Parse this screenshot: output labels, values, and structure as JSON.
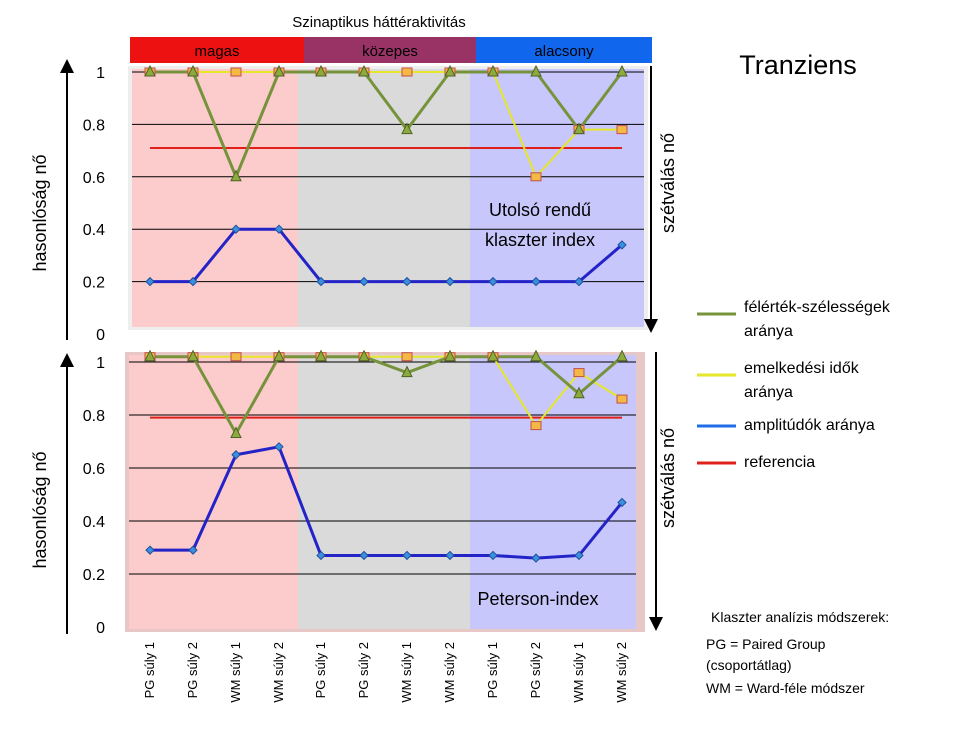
{
  "header": {
    "title": "Szinaptikus háttéraktivitás",
    "bands": [
      {
        "label": "magas",
        "color": "#ee1111"
      },
      {
        "label": "közepes",
        "color": "#993366"
      },
      {
        "label": "alacsony",
        "color": "#1166ee"
      }
    ]
  },
  "main_title": "Tranziens",
  "axis": {
    "ylabel": "hasonlóság nő",
    "right_label": "szétválás nő"
  },
  "legend": [
    {
      "label": "félérték-szélességek aránya",
      "color": "#76933c"
    },
    {
      "label": "emelkedési idők aránya",
      "color": "#e6e62a"
    },
    {
      "label": "amplitúdók aránya",
      "color": "#1f6ee8"
    },
    {
      "label": "referencia",
      "color": "#e0201b"
    }
  ],
  "notes": {
    "heading": "Klaszter analízis módszerek:",
    "line1": "PG = Paired Group",
    "line2": "(csoportátlag)",
    "line3": "WM = Ward-féle módszer"
  },
  "chart_data": [
    {
      "type": "line",
      "annotation": [
        "Utolsó rendű",
        "klaszter index"
      ],
      "categories": [
        "PG súly 1",
        "PG súly 2",
        "WM súly 1",
        "WM súly 2",
        "PG súly 1",
        "PG súly 2",
        "WM súly 1",
        "WM súly 2",
        "PG súly 1",
        "PG súly 2",
        "WM súly 1",
        "WM súly 2"
      ],
      "yticks": [
        "0",
        "0.2",
        "0.4",
        "0.6",
        "0.8",
        "1"
      ],
      "ylim": [
        0,
        1
      ],
      "grid": true,
      "series": [
        {
          "name": "félérték-szélességek aránya",
          "color": "#76933c",
          "marker": "triangle",
          "values": [
            1,
            1,
            0.6,
            1,
            1,
            1,
            0.78,
            1,
            1,
            1,
            0.78,
            1
          ]
        },
        {
          "name": "emelkedési idők aránya",
          "color": "#e6e62a",
          "marker": "square",
          "values": [
            1,
            1,
            1,
            1,
            1,
            1,
            1,
            1,
            1,
            0.6,
            0.78,
            0.78
          ]
        },
        {
          "name": "amplitúdók aránya",
          "color": "#1f6ee8",
          "marker": "diamond",
          "values": [
            0.2,
            0.2,
            0.4,
            0.4,
            0.2,
            0.2,
            0.2,
            0.2,
            0.2,
            0.2,
            0.2,
            0.34
          ]
        },
        {
          "name": "referencia",
          "color": "#e0201b",
          "marker": "none",
          "values": [
            0.71,
            0.71,
            0.71,
            0.71,
            0.71,
            0.71,
            0.71,
            0.71,
            0.71,
            0.71,
            0.71,
            0.71
          ]
        }
      ]
    },
    {
      "type": "line",
      "annotation": [
        "Peterson-index"
      ],
      "categories": [
        "PG súly 1",
        "PG súly 2",
        "WM súly 1",
        "WM súly 2",
        "PG súly 1",
        "PG súly 2",
        "WM súly 1",
        "WM súly 2",
        "PG súly 1",
        "PG súly 2",
        "WM súly 1",
        "WM súly 2"
      ],
      "yticks": [
        "0",
        "0.2",
        "0.4",
        "0.6",
        "0.8",
        "1"
      ],
      "ylim": [
        0,
        1
      ],
      "grid": true,
      "series": [
        {
          "name": "félérték-szélességek aránya",
          "color": "#76933c",
          "marker": "triangle",
          "values": [
            1.02,
            1.02,
            0.73,
            1.02,
            1.02,
            1.02,
            0.96,
            1.02,
            1.02,
            1.02,
            0.88,
            1.02
          ]
        },
        {
          "name": "emelkedési idők aránya",
          "color": "#e6e62a",
          "marker": "square",
          "values": [
            1.02,
            1.02,
            1.02,
            1.02,
            1.02,
            1.02,
            1.02,
            1.02,
            1.02,
            0.76,
            0.96,
            0.86
          ]
        },
        {
          "name": "amplitúdók aránya",
          "color": "#1f6ee8",
          "marker": "diamond",
          "values": [
            0.29,
            0.29,
            0.65,
            0.68,
            0.27,
            0.27,
            0.27,
            0.27,
            0.27,
            0.26,
            0.27,
            0.47
          ]
        },
        {
          "name": "referencia",
          "color": "#e0201b",
          "marker": "none",
          "values": [
            0.79,
            0.79,
            0.79,
            0.79,
            0.79,
            0.79,
            0.79,
            0.79,
            0.79,
            0.79,
            0.79,
            0.79
          ]
        }
      ]
    }
  ]
}
